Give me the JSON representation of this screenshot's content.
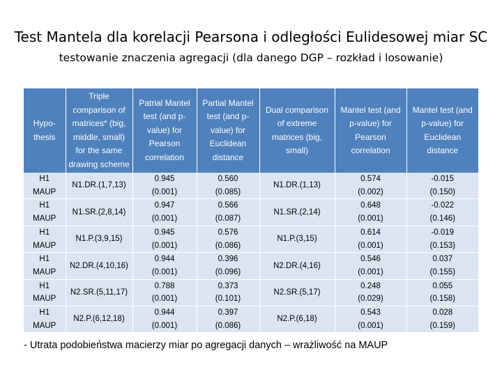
{
  "title": "Test Mantela dla korelacji Pearsona i odległości Eulidesowej miar SC",
  "subtitle": "testowanie znaczenia agregacji (dla danego DGP – rozkład i losowanie)",
  "table": {
    "headers": [
      "Hypo-thesis",
      "Triple comparison of matrices* (big, middle, small) for the same drawing scheme",
      "Patrial Mantel test (and p-value) for Pearson correlation",
      "Partial Mantel test (and p-value) for Euclidean distance",
      "Dual comparison of extreme matrices (big, small)",
      "Mantel test (and p-value) for Pearson correlation",
      "Mantel test (and p-value) for Euclidean distance"
    ],
    "rows": [
      {
        "hyp1": "H1",
        "hyp2": "MAUP",
        "triple": "N1.DR.(1,7,13)",
        "pp_val": "0.945",
        "pp_p": "(0.001)",
        "pe_val": "0.560",
        "pe_p": "(0.085)",
        "dual": "N1.DR.(1,13)",
        "mp_val": "0.574",
        "mp_p": "(0.002)",
        "me_val": "-0.015",
        "me_p": "(0.150)"
      },
      {
        "hyp1": "H1",
        "hyp2": "MAUP",
        "triple": "N1.SR.(2,8,14)",
        "pp_val": "0.947",
        "pp_p": "(0.001)",
        "pe_val": "0.566",
        "pe_p": "(0.087)",
        "dual": "N1.SR.(2,14)",
        "mp_val": "0.648",
        "mp_p": "(0.001)",
        "me_val": "-0.022",
        "me_p": "(0.146)"
      },
      {
        "hyp1": "H1",
        "hyp2": "MAUP",
        "triple": "N1.P.(3,9,15)",
        "pp_val": "0.945",
        "pp_p": "(0.001)",
        "pe_val": "0.576",
        "pe_p": "(0.086)",
        "dual": "N1.P.(3,15)",
        "mp_val": "0.614",
        "mp_p": "(0.001)",
        "me_val": "-0.019",
        "me_p": "(0.153)"
      },
      {
        "hyp1": "H1",
        "hyp2": "MAUP",
        "triple": "N2.DR.(4,10,16)",
        "pp_val": "0.944",
        "pp_p": "(0.001)",
        "pe_val": "0.396",
        "pe_p": "(0.096)",
        "dual": "N2.DR.(4,16)",
        "mp_val": "0.546",
        "mp_p": "(0.001)",
        "me_val": "0.037",
        "me_p": "(0.155)"
      },
      {
        "hyp1": "H1",
        "hyp2": "MAUP",
        "triple": "N2.SR.(5,11,17)",
        "pp_val": "0.788",
        "pp_p": "(0.001)",
        "pe_val": "0.373",
        "pe_p": "(0.101)",
        "dual": "N2.SR.(5,17)",
        "mp_val": "0.248",
        "mp_p": "(0.029)",
        "me_val": "0.055",
        "me_p": "(0.158)"
      },
      {
        "hyp1": "H1",
        "hyp2": "MAUP",
        "triple": "N2.P.(6,12,18)",
        "pp_val": "0.944",
        "pp_p": "(0.001)",
        "pe_val": "0.397",
        "pe_p": "(0.086)",
        "dual": "N2.P.(6,18)",
        "mp_val": "0.543",
        "mp_p": "(0.001)",
        "me_val": "0.028",
        "me_p": "(0.159)"
      }
    ]
  },
  "footnote": "- Utrata podobieństwa macierzy miar po agregacji danych – wrażliwość na MAUP",
  "colors": {
    "header_bg": "#4f81bd",
    "cell_bg": "#dbe4f0",
    "header_text": "#ffffff"
  }
}
